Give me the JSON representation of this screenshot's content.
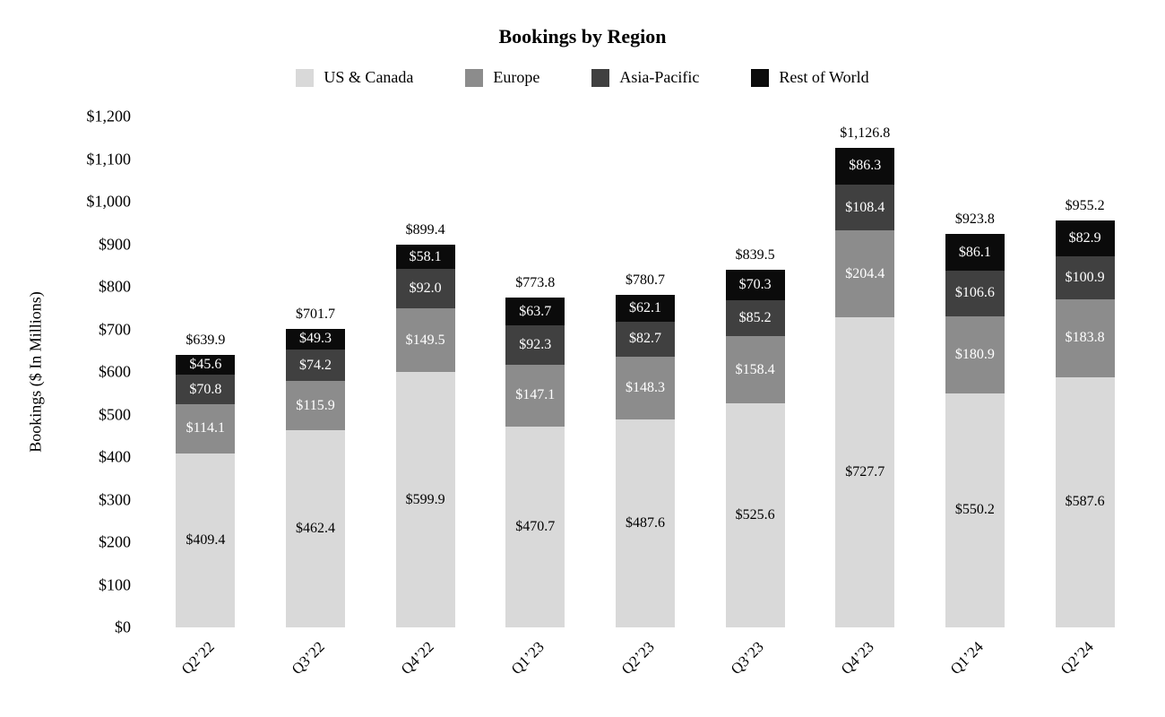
{
  "chart_data": {
    "type": "bar",
    "stacked": true,
    "title": "Bookings by Region",
    "ylabel": "Bookings ($ In Millions)",
    "legend_position": "top",
    "grid": false,
    "categories": [
      "Q2’22",
      "Q3’22",
      "Q4’22",
      "Q1’23",
      "Q2’23",
      "Q3’23",
      "Q4’23",
      "Q1’24",
      "Q2’24"
    ],
    "series": [
      {
        "name": "US & Canada",
        "color": "#d9d9d9",
        "label_color": "#000000",
        "values": [
          409.4,
          462.4,
          599.9,
          470.7,
          487.6,
          525.6,
          727.7,
          550.2,
          587.6
        ]
      },
      {
        "name": "Europe",
        "color": "#8c8c8c",
        "label_color": "#ffffff",
        "values": [
          114.1,
          115.9,
          149.5,
          147.1,
          148.3,
          158.4,
          204.4,
          180.9,
          183.8
        ]
      },
      {
        "name": "Asia-Pacific",
        "color": "#404040",
        "label_color": "#ffffff",
        "values": [
          70.8,
          74.2,
          92.0,
          92.3,
          82.7,
          85.2,
          108.4,
          106.6,
          100.9
        ]
      },
      {
        "name": "Rest of World",
        "color": "#0b0b0b",
        "label_color": "#ffffff",
        "values": [
          45.6,
          49.3,
          58.1,
          63.7,
          62.1,
          70.3,
          86.3,
          86.1,
          82.9
        ]
      }
    ],
    "totals": [
      639.9,
      701.7,
      899.4,
      773.8,
      780.7,
      839.5,
      1126.8,
      923.8,
      955.2
    ],
    "y_axis": {
      "max": 1200,
      "ticks": [
        {
          "label": "$0",
          "value": 0
        },
        {
          "label": "$100",
          "value": 100
        },
        {
          "label": "$200",
          "value": 200
        },
        {
          "label": "$300",
          "value": 300
        },
        {
          "label": "$400",
          "value": 400
        },
        {
          "label": "$500",
          "value": 500
        },
        {
          "label": "$600",
          "value": 600
        },
        {
          "label": "$700",
          "value": 700
        },
        {
          "label": "$800",
          "value": 800
        },
        {
          "label": "$900",
          "value": 900
        },
        {
          "label": "$1,000",
          "value": 1000
        },
        {
          "label": "$1,100",
          "value": 1100
        },
        {
          "label": "$1,200",
          "value": 1200
        }
      ]
    }
  }
}
